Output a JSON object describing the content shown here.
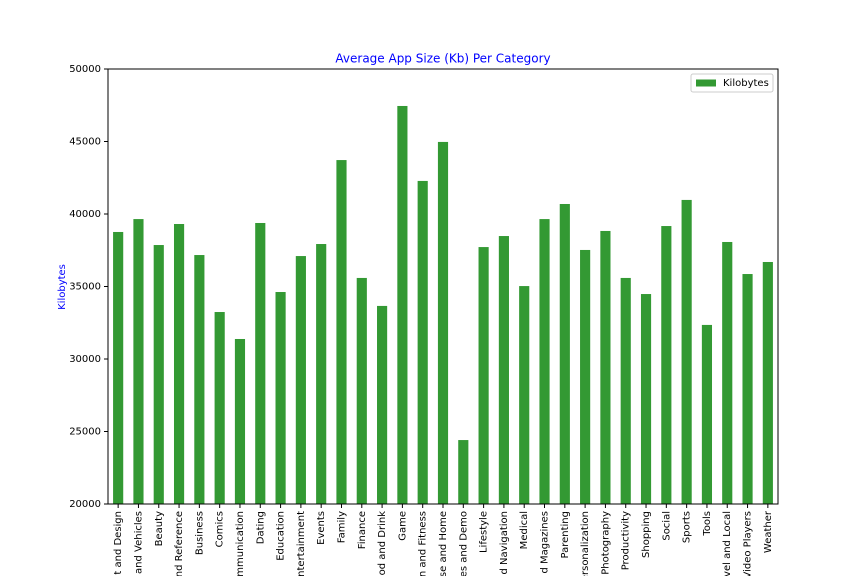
{
  "chart_data": {
    "type": "bar",
    "title": "Average App Size (Kb) Per Category",
    "ylabel": "Kilobytes",
    "categories": [
      "t and Design",
      "and Vehicles",
      "Beauty",
      "nd Reference",
      "Business",
      "Comics",
      "mmunication",
      "Dating",
      "Education",
      "ntertainment",
      "Events",
      "Family",
      "Finance",
      "od and Drink",
      "Game",
      "n and Fitness",
      "se and Home",
      "es and Demo",
      "Lifestyle",
      "d Navigation",
      "Medical",
      "d Magazines",
      "Parenting",
      "ersonalization",
      "Photography",
      "Productivity",
      "Shopping",
      "Social",
      "Sports",
      "Tools",
      "vel and Local",
      "Video Players",
      "Weather"
    ],
    "series": [
      {
        "name": "Kilobytes",
        "color": "#339933",
        "values": [
          38760,
          39650,
          37860,
          39310,
          37170,
          33240,
          31380,
          39380,
          34620,
          37100,
          37930,
          43720,
          35590,
          33660,
          47450,
          42280,
          44970,
          24410,
          37720,
          38480,
          35030,
          39650,
          40690,
          37520,
          38830,
          35590,
          34480,
          39170,
          40970,
          32350,
          38070,
          35860,
          36690
        ]
      }
    ],
    "ylim": [
      20000,
      50000
    ],
    "yticks": [
      20000,
      25000,
      30000,
      35000,
      40000,
      45000,
      50000
    ],
    "grid": false,
    "legend": "upper right"
  }
}
